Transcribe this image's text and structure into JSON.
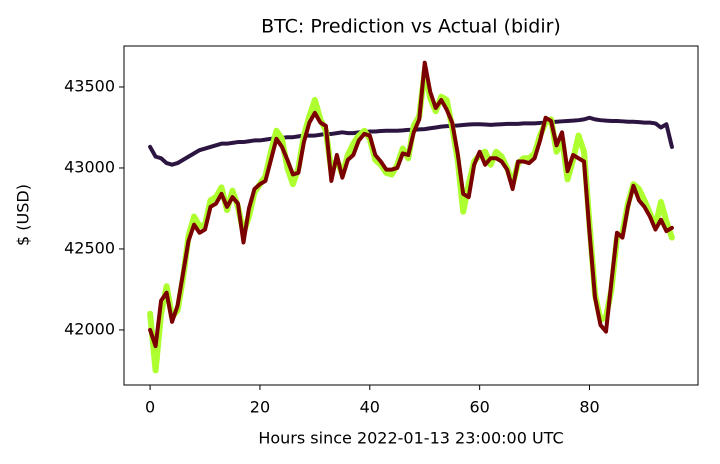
{
  "chart_data": {
    "type": "line",
    "title": "BTC: Prediction vs Actual (bidir)",
    "x_label": "Hours since 2022-01-13 23:00:00 UTC",
    "y_label": "$ (USD)",
    "x": [
      0,
      1,
      2,
      3,
      4,
      5,
      6,
      7,
      8,
      9,
      10,
      11,
      12,
      13,
      14,
      15,
      16,
      17,
      18,
      19,
      20,
      21,
      22,
      23,
      24,
      25,
      26,
      27,
      28,
      29,
      30,
      31,
      32,
      33,
      34,
      35,
      36,
      37,
      38,
      39,
      40,
      41,
      42,
      43,
      44,
      45,
      46,
      47,
      48,
      49,
      50,
      51,
      52,
      53,
      54,
      55,
      56,
      57,
      58,
      59,
      60,
      61,
      62,
      63,
      64,
      65,
      66,
      67,
      68,
      69,
      70,
      71,
      72,
      73,
      74,
      75,
      76,
      77,
      78,
      79,
      80,
      81,
      82,
      83,
      84,
      85,
      86,
      87,
      88,
      89,
      90,
      91,
      92,
      93,
      94,
      95
    ],
    "series": [
      {
        "color": "#2d1541",
        "width": 4,
        "values": [
          43130,
          43070,
          43060,
          43030,
          43020,
          43030,
          43050,
          43070,
          43090,
          43110,
          43120,
          43130,
          43140,
          43150,
          43150,
          43155,
          43160,
          43160,
          43165,
          43170,
          43170,
          43175,
          43180,
          43180,
          43185,
          43190,
          43190,
          43195,
          43200,
          43200,
          43200,
          43205,
          43210,
          43210,
          43215,
          43220,
          43215,
          43215,
          43220,
          43220,
          43225,
          43225,
          43228,
          43230,
          43230,
          43230,
          43232,
          43235,
          43235,
          43238,
          43240,
          43245,
          43250,
          43255,
          43258,
          43260,
          43262,
          43265,
          43268,
          43270,
          43270,
          43268,
          43266,
          43268,
          43270,
          43272,
          43272,
          43272,
          43275,
          43275,
          43275,
          43278,
          43280,
          43282,
          43285,
          43288,
          43290,
          43292,
          43295,
          43300,
          43310,
          43300,
          43295,
          43292,
          43290,
          43290,
          43288,
          43285,
          43285,
          43283,
          43280,
          43280,
          43275,
          43250,
          43270,
          43130
        ]
      },
      {
        "color": "#adff2f",
        "width": 6,
        "values": [
          42100,
          41750,
          42100,
          42270,
          42080,
          42120,
          42320,
          42580,
          42700,
          42640,
          42650,
          42800,
          42820,
          42880,
          42740,
          42860,
          42760,
          42600,
          42700,
          42850,
          42900,
          42950,
          43100,
          43230,
          43180,
          43000,
          42900,
          43000,
          43200,
          43320,
          43420,
          43300,
          43230,
          42980,
          43050,
          42960,
          43080,
          43150,
          43200,
          43230,
          43180,
          43050,
          43020,
          42970,
          42960,
          43020,
          43120,
          43060,
          43260,
          43320,
          43600,
          43430,
          43350,
          43440,
          43420,
          43250,
          43050,
          42730,
          42900,
          43040,
          43080,
          43100,
          43020,
          43100,
          43070,
          43000,
          42900,
          43030,
          43060,
          43060,
          43090,
          43200,
          43280,
          43300,
          43100,
          43180,
          42930,
          43050,
          43200,
          43100,
          42650,
          42220,
          42060,
          42080,
          42250,
          42570,
          42600,
          42780,
          42900,
          42870,
          42800,
          42720,
          42640,
          42790,
          42670,
          42570
        ]
      },
      {
        "color": "#7b0000",
        "width": 4,
        "values": [
          42000,
          41900,
          42180,
          42230,
          42050,
          42150,
          42350,
          42550,
          42650,
          42600,
          42620,
          42760,
          42780,
          42840,
          42760,
          42820,
          42780,
          42540,
          42750,
          42870,
          42900,
          42920,
          43050,
          43180,
          43130,
          43050,
          42960,
          42970,
          43160,
          43280,
          43340,
          43280,
          43260,
          42920,
          43080,
          42940,
          43050,
          43080,
          43170,
          43210,
          43200,
          43080,
          43040,
          42990,
          42990,
          43000,
          43090,
          43080,
          43220,
          43300,
          43650,
          43470,
          43370,
          43420,
          43360,
          43280,
          43090,
          42840,
          42820,
          43020,
          43100,
          43020,
          43060,
          43060,
          43040,
          42990,
          42870,
          43040,
          43040,
          43030,
          43060,
          43170,
          43310,
          43290,
          43140,
          43220,
          42980,
          43080,
          43060,
          43040,
          42600,
          42200,
          42030,
          41990,
          42300,
          42600,
          42570,
          42760,
          42890,
          42800,
          42760,
          42700,
          42620,
          42680,
          42610,
          42630
        ]
      }
    ],
    "xlim": [
      -4.75,
      99.75
    ],
    "ylim": [
      41660,
      43753
    ],
    "xticks": [
      0,
      20,
      40,
      60,
      80
    ],
    "yticks": [
      42000,
      42500,
      43000,
      43500
    ]
  }
}
